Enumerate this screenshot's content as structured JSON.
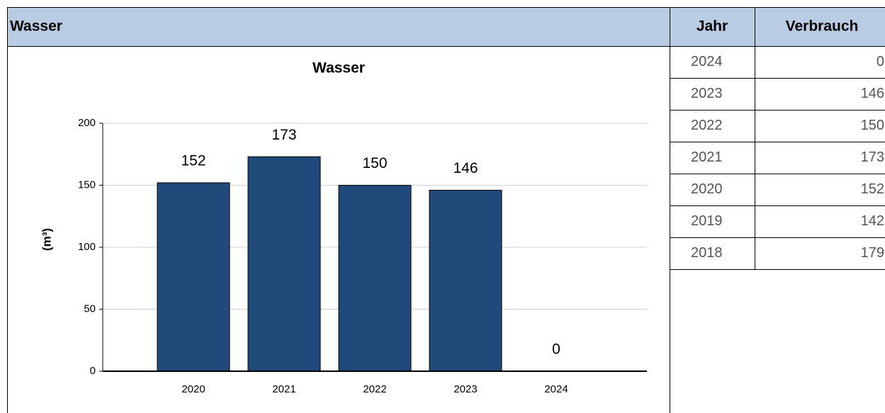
{
  "panel": {
    "title": "Wasser"
  },
  "chart_data": {
    "type": "bar",
    "title": "Wasser",
    "y_label": "(m³)",
    "categories": [
      "2020",
      "2021",
      "2022",
      "2023",
      "2024"
    ],
    "values": [
      152,
      173,
      150,
      146,
      0
    ],
    "color": "#214a7b",
    "ylim": [
      0,
      200
    ],
    "yticks": [
      0,
      50,
      100,
      150,
      200
    ],
    "grid": true
  },
  "table": {
    "header": [
      "Jahr",
      "Verbrauch"
    ],
    "rows": [
      [
        "2024",
        0
      ],
      [
        "2023",
        146
      ],
      [
        "2022",
        150
      ],
      [
        "2021",
        173
      ],
      [
        "2020",
        152
      ],
      [
        "2019",
        142
      ],
      [
        "2018",
        179
      ]
    ]
  }
}
